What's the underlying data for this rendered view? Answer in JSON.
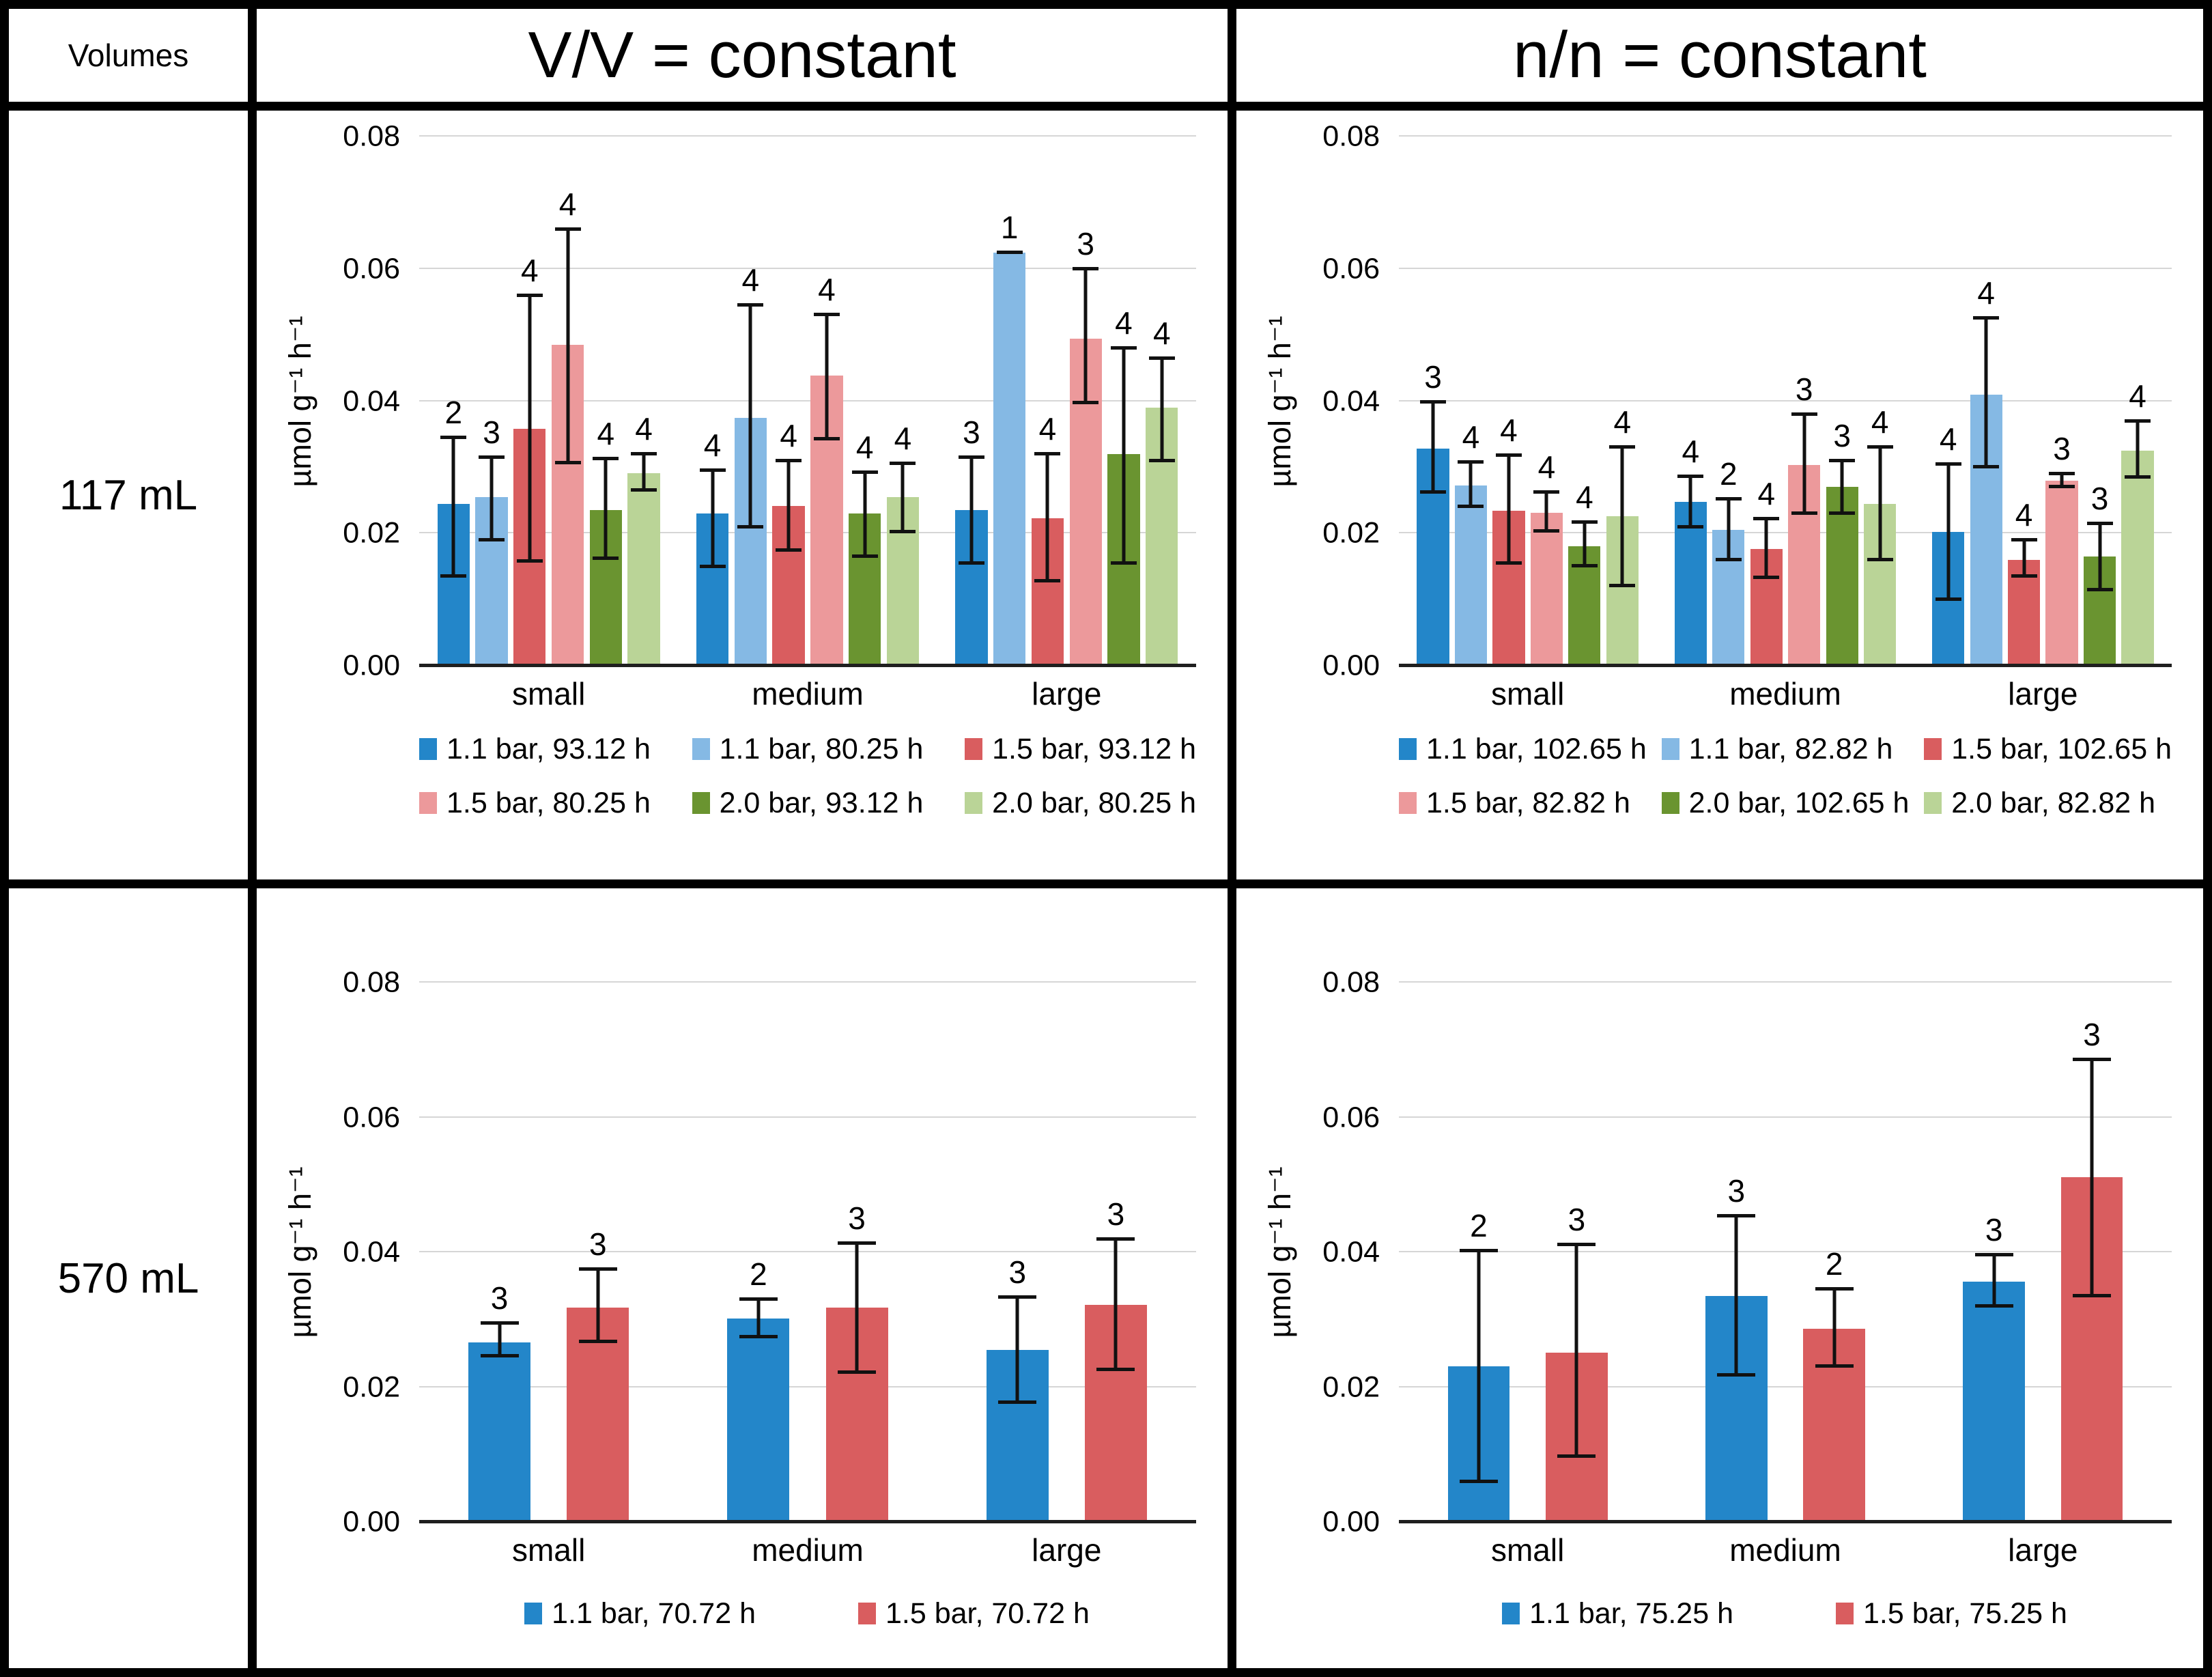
{
  "table": {
    "corner_label": "Volumes",
    "col_headers": [
      "V/V = constant",
      "n/n = constant"
    ],
    "row_headers": [
      "117 mL",
      "570 mL"
    ]
  },
  "colors": {
    "blue": "#2386C9",
    "light_blue": "#85B9E4",
    "red": "#D95D5F",
    "pink": "#EC999B",
    "dark_green": "#6A9430",
    "light_green": "#BAD497",
    "gridline": "#D6D6D6",
    "axis": "#1F1F1F"
  },
  "chart_data": [
    {
      "id": "117mL-VV-constant",
      "type": "bar",
      "row": "117 mL",
      "column": "V/V = constant",
      "title": "",
      "xlabel": "",
      "ylabel": "µmol g⁻¹ h⁻¹",
      "ylim": [
        0,
        0.08
      ],
      "yticks": [
        0,
        0.02,
        0.04,
        0.06,
        0.08
      ],
      "ytick_labels": [
        "0.00",
        "0.02",
        "0.04",
        "0.06",
        "0.08"
      ],
      "grid": true,
      "legend_position": "bottom",
      "error_bars": true,
      "categories": [
        "small",
        "medium",
        "large"
      ],
      "series": [
        {
          "name": "1.1 bar, 93.12 h",
          "color": "#2386C9",
          "values": [
            0.0245,
            0.023,
            0.0235
          ],
          "err_lo": [
            0.0135,
            0.015,
            0.0155
          ],
          "err_hi": [
            0.0345,
            0.0295,
            0.0315
          ],
          "counts": [
            "2",
            "4",
            "3"
          ]
        },
        {
          "name": "1.1 bar, 80.25 h",
          "color": "#85B9E4",
          "values": [
            0.0255,
            0.0375,
            0.0625
          ],
          "err_lo": [
            0.019,
            0.021,
            0.0625
          ],
          "err_hi": [
            0.0315,
            0.0545,
            0.0625
          ],
          "counts": [
            "3",
            "4",
            "1"
          ]
        },
        {
          "name": "1.5 bar, 93.12 h",
          "color": "#D95D5F",
          "values": [
            0.0358,
            0.0242,
            0.0223
          ],
          "err_lo": [
            0.0158,
            0.0174,
            0.0128
          ],
          "err_hi": [
            0.056,
            0.031,
            0.032
          ],
          "counts": [
            "4",
            "4",
            "4"
          ]
        },
        {
          "name": "1.5 bar, 80.25 h",
          "color": "#EC999B",
          "values": [
            0.0485,
            0.0439,
            0.0494
          ],
          "err_lo": [
            0.0307,
            0.0343,
            0.0397
          ],
          "err_hi": [
            0.066,
            0.0531,
            0.06
          ],
          "counts": [
            "4",
            "4",
            "3"
          ]
        },
        {
          "name": "2.0 bar, 93.12 h",
          "color": "#6A9430",
          "values": [
            0.0235,
            0.023,
            0.032
          ],
          "err_lo": [
            0.0162,
            0.0165,
            0.0155
          ],
          "err_hi": [
            0.0313,
            0.0292,
            0.048
          ],
          "counts": [
            "4",
            "4",
            "4"
          ]
        },
        {
          "name": "2.0 bar, 80.25 h",
          "color": "#BAD497",
          "values": [
            0.0291,
            0.0255,
            0.039
          ],
          "err_lo": [
            0.0265,
            0.0202,
            0.031
          ],
          "err_hi": [
            0.032,
            0.0306,
            0.0465
          ],
          "counts": [
            "4",
            "4",
            "4"
          ]
        }
      ]
    },
    {
      "id": "117mL-nn-constant",
      "type": "bar",
      "row": "117 mL",
      "column": "n/n = constant",
      "title": "",
      "xlabel": "",
      "ylabel": "µmol g⁻¹ h⁻¹",
      "ylim": [
        0,
        0.08
      ],
      "yticks": [
        0,
        0.02,
        0.04,
        0.06,
        0.08
      ],
      "ytick_labels": [
        "0.00",
        "0.02",
        "0.04",
        "0.06",
        "0.08"
      ],
      "grid": true,
      "legend_position": "bottom",
      "error_bars": true,
      "categories": [
        "small",
        "medium",
        "large"
      ],
      "series": [
        {
          "name": "1.1 bar, 102.65 h",
          "color": "#2386C9",
          "values": [
            0.0328,
            0.0248,
            0.0202
          ],
          "err_lo": [
            0.0262,
            0.021,
            0.01
          ],
          "err_hi": [
            0.0398,
            0.0286,
            0.0305
          ],
          "counts": [
            "3",
            "4",
            "4"
          ]
        },
        {
          "name": "1.1 bar, 82.82 h",
          "color": "#85B9E4",
          "values": [
            0.0273,
            0.0205,
            0.041
          ],
          "err_lo": [
            0.0241,
            0.016,
            0.03
          ],
          "err_hi": [
            0.0308,
            0.0252,
            0.0525
          ],
          "counts": [
            "4",
            "2",
            "4"
          ]
        },
        {
          "name": "1.5 bar, 102.65 h",
          "color": "#D95D5F",
          "values": [
            0.0234,
            0.0177,
            0.016
          ],
          "err_lo": [
            0.0155,
            0.0133,
            0.0135
          ],
          "err_hi": [
            0.0318,
            0.0222,
            0.019
          ],
          "counts": [
            "4",
            "4",
            "4"
          ]
        },
        {
          "name": "1.5 bar, 82.82 h",
          "color": "#EC999B",
          "values": [
            0.0231,
            0.0303,
            0.028
          ],
          "err_lo": [
            0.0203,
            0.023,
            0.027
          ],
          "err_hi": [
            0.0262,
            0.038,
            0.029
          ],
          "counts": [
            "4",
            "3",
            "3"
          ]
        },
        {
          "name": "2.0 bar, 102.65 h",
          "color": "#6A9430",
          "values": [
            0.0181,
            0.027,
            0.0165
          ],
          "err_lo": [
            0.0151,
            0.023,
            0.0115
          ],
          "err_hi": [
            0.0217,
            0.031,
            0.0215
          ],
          "counts": [
            "4",
            "3",
            "3"
          ]
        },
        {
          "name": "2.0 bar, 82.82 h",
          "color": "#BAD497",
          "values": [
            0.0226,
            0.0245,
            0.0325
          ],
          "err_lo": [
            0.0121,
            0.016,
            0.0285
          ],
          "err_hi": [
            0.033,
            0.033,
            0.037
          ],
          "counts": [
            "4",
            "4",
            "4"
          ]
        }
      ]
    },
    {
      "id": "570mL-VV-constant",
      "type": "bar",
      "row": "570 mL",
      "column": "V/V = constant",
      "title": "",
      "xlabel": "",
      "ylabel": "µmol g⁻¹ h⁻¹",
      "ylim": [
        0,
        0.08
      ],
      "yticks": [
        0,
        0.02,
        0.04,
        0.06,
        0.08
      ],
      "ytick_labels": [
        "0.00",
        "0.02",
        "0.04",
        "0.06",
        "0.08"
      ],
      "grid": true,
      "legend_position": "bottom",
      "error_bars": true,
      "categories": [
        "small",
        "medium",
        "large"
      ],
      "series": [
        {
          "name": "1.1 bar, 70.72 h",
          "color": "#2386C9",
          "values": [
            0.0266,
            0.0302,
            0.0255
          ],
          "err_lo": [
            0.0246,
            0.0274,
            0.0177
          ],
          "err_hi": [
            0.0295,
            0.033,
            0.0333
          ],
          "counts": [
            "3",
            "2",
            "3"
          ]
        },
        {
          "name": "1.5 bar, 70.72 h",
          "color": "#D95D5F",
          "values": [
            0.0318,
            0.0318,
            0.0322
          ],
          "err_lo": [
            0.0267,
            0.0222,
            0.0226
          ],
          "err_hi": [
            0.0375,
            0.0413,
            0.0419
          ],
          "counts": [
            "3",
            "3",
            "3"
          ]
        }
      ]
    },
    {
      "id": "570mL-nn-constant",
      "type": "bar",
      "row": "570 mL",
      "column": "n/n = constant",
      "title": "",
      "xlabel": "",
      "ylabel": "µmol g⁻¹ h⁻¹",
      "ylim": [
        0,
        0.08
      ],
      "yticks": [
        0,
        0.02,
        0.04,
        0.06,
        0.08
      ],
      "ytick_labels": [
        "0.00",
        "0.02",
        "0.04",
        "0.06",
        "0.08"
      ],
      "grid": true,
      "legend_position": "bottom",
      "error_bars": true,
      "categories": [
        "small",
        "medium",
        "large"
      ],
      "series": [
        {
          "name": "1.1 bar, 75.25 h",
          "color": "#2386C9",
          "values": [
            0.0231,
            0.0335,
            0.0356
          ],
          "err_lo": [
            0.006,
            0.0218,
            0.032
          ],
          "err_hi": [
            0.0402,
            0.0454,
            0.0396
          ],
          "counts": [
            "2",
            "3",
            "3"
          ]
        },
        {
          "name": "1.5 bar, 75.25 h",
          "color": "#D95D5F",
          "values": [
            0.0251,
            0.0287,
            0.0511
          ],
          "err_lo": [
            0.0097,
            0.0231,
            0.0335
          ],
          "err_hi": [
            0.0411,
            0.0345,
            0.0686
          ],
          "counts": [
            "3",
            "2",
            "3"
          ]
        }
      ]
    }
  ]
}
